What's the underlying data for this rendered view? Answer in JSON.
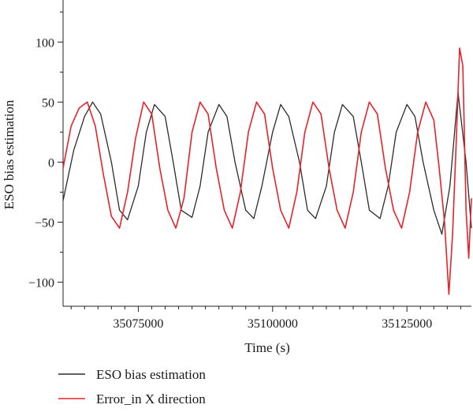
{
  "chart_data": {
    "type": "line",
    "title": "",
    "xlabel": "Time (s)",
    "ylabel": "ESO bias estimation",
    "xlim": [
      35061000,
      35137000
    ],
    "ylim": [
      -120,
      135
    ],
    "x_ticks": [
      35075000,
      35100000,
      35125000
    ],
    "x_tick_labels": [
      "35075000",
      "35100000",
      "35125000"
    ],
    "y_ticks": [
      -100,
      -50,
      0,
      50,
      100
    ],
    "y_tick_labels": [
      "−100",
      "−50",
      "0",
      "50",
      "100"
    ],
    "grid": false,
    "legend_position": "bottom-left",
    "series": [
      {
        "name": "ESO bias estimation",
        "color": "#2b2b2b",
        "x": [
          35061000,
          35063000,
          35065000,
          35066500,
          35068000,
          35070000,
          35071500,
          35073000,
          35075000,
          35076500,
          35078000,
          35080000,
          35081500,
          35083000,
          35085000,
          35086500,
          35088000,
          35090000,
          35091500,
          35093000,
          35095000,
          35096500,
          35098000,
          35100000,
          35101500,
          35103000,
          35105000,
          35106500,
          35108000,
          35110000,
          35111500,
          35113000,
          35115000,
          35116500,
          35118000,
          35120000,
          35121500,
          35123000,
          35125000,
          35126500,
          35128000,
          35130000,
          35131500,
          35133000,
          35134500,
          35136000,
          35137000
        ],
        "y": [
          -32,
          10,
          38,
          50,
          40,
          0,
          -40,
          -48,
          -20,
          25,
          48,
          38,
          0,
          -40,
          -46,
          -20,
          25,
          48,
          38,
          0,
          -40,
          -47,
          -20,
          25,
          48,
          38,
          0,
          -40,
          -47,
          -20,
          25,
          48,
          38,
          0,
          -40,
          -47,
          -20,
          25,
          48,
          38,
          0,
          -40,
          -60,
          -20,
          58,
          0,
          -55
        ]
      },
      {
        "name": "Error_in X direction",
        "color": "#e8222a",
        "x": [
          35061000,
          35062500,
          35064000,
          35065500,
          35067000,
          35068500,
          35070000,
          35071500,
          35073000,
          35074500,
          35076000,
          35077500,
          35079000,
          35080500,
          35082000,
          35083500,
          35085000,
          35086500,
          35088000,
          35089500,
          35091000,
          35092500,
          35094000,
          35095500,
          35097000,
          35098500,
          35100000,
          35101500,
          35103000,
          35104500,
          35106000,
          35107500,
          35109000,
          35110500,
          35112000,
          35113500,
          35115000,
          35116500,
          35118000,
          35119500,
          35121000,
          35122500,
          35124000,
          35125500,
          35127000,
          35128500,
          35130000,
          35131000,
          35132000,
          35132800,
          35133500,
          35134200,
          35134800,
          35135400,
          35136000,
          35136500,
          35137000
        ],
        "y": [
          -5,
          30,
          45,
          50,
          30,
          -10,
          -45,
          -55,
          -25,
          20,
          50,
          40,
          -5,
          -40,
          -55,
          -30,
          25,
          50,
          40,
          -5,
          -40,
          -55,
          -25,
          25,
          50,
          40,
          -5,
          -40,
          -55,
          -25,
          25,
          50,
          40,
          -5,
          -40,
          -55,
          -25,
          25,
          50,
          40,
          -5,
          -40,
          -55,
          -25,
          25,
          50,
          35,
          -5,
          -50,
          -110,
          -60,
          20,
          95,
          80,
          -40,
          -80,
          -30
        ]
      }
    ]
  }
}
